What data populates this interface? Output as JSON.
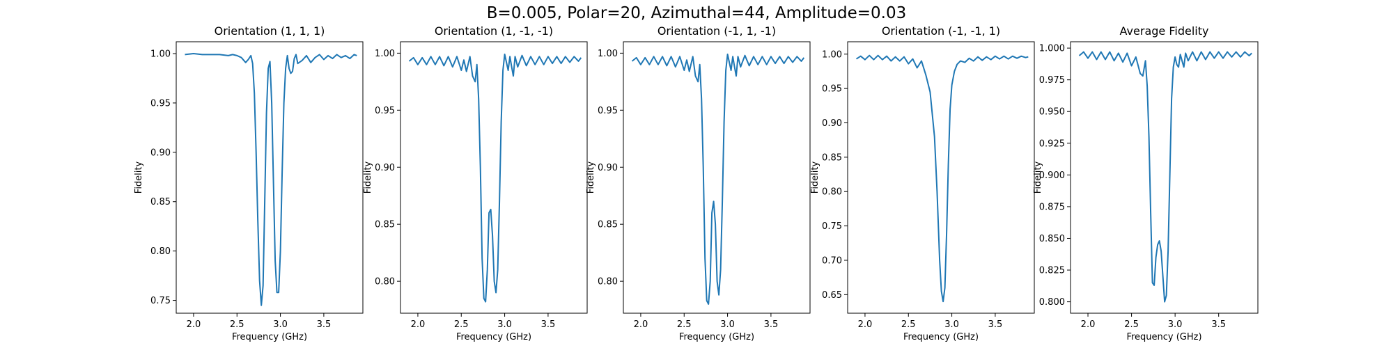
{
  "suptitle": "B=0.005, Polar=20, Azimuthal=44, Amplitude=0.03",
  "line_color": "#1f77b4",
  "chart_data": [
    {
      "type": "line",
      "title": "Orientation (1, 1, 1)",
      "xlabel": "Frequency (GHz)",
      "ylabel": "Fidelity",
      "xlim": [
        1.8,
        3.95
      ],
      "ylim": [
        0.737,
        1.012
      ],
      "xticks": [
        2.0,
        2.5,
        3.0,
        3.5
      ],
      "xtick_labels": [
        "2.0",
        "2.5",
        "3.0",
        "3.5"
      ],
      "yticks": [
        0.75,
        0.8,
        0.85,
        0.9,
        0.95,
        1.0
      ],
      "ytick_labels": [
        "0.75",
        "0.80",
        "0.85",
        "0.90",
        "0.95",
        "1.00"
      ],
      "series": [
        {
          "x": [
            1.9,
            2.0,
            2.1,
            2.2,
            2.3,
            2.4,
            2.45,
            2.5,
            2.55,
            2.6,
            2.63,
            2.66,
            2.68,
            2.7,
            2.72,
            2.74,
            2.76,
            2.78,
            2.8,
            2.82,
            2.84,
            2.86,
            2.88,
            2.9,
            2.92,
            2.94,
            2.96,
            2.98,
            3.0,
            3.02,
            3.04,
            3.06,
            3.08,
            3.1,
            3.12,
            3.14,
            3.16,
            3.18,
            3.2,
            3.25,
            3.3,
            3.35,
            3.4,
            3.45,
            3.5,
            3.55,
            3.6,
            3.65,
            3.7,
            3.75,
            3.8,
            3.85,
            3.88
          ],
          "y": [
            0.999,
            1.0,
            0.999,
            0.999,
            0.999,
            0.998,
            0.999,
            0.998,
            0.996,
            0.991,
            0.994,
            0.998,
            0.99,
            0.96,
            0.9,
            0.83,
            0.77,
            0.745,
            0.765,
            0.85,
            0.94,
            0.985,
            0.992,
            0.95,
            0.87,
            0.79,
            0.758,
            0.758,
            0.8,
            0.88,
            0.95,
            0.985,
            0.998,
            0.985,
            0.98,
            0.982,
            0.995,
            0.999,
            0.99,
            0.993,
            0.998,
            0.991,
            0.996,
            0.999,
            0.994,
            0.998,
            0.995,
            0.999,
            0.996,
            0.998,
            0.995,
            0.999,
            0.998
          ]
        }
      ]
    },
    {
      "type": "line",
      "title": "Orientation (1, -1, -1)",
      "xlabel": "Frequency (GHz)",
      "ylabel": "Fidelity",
      "xlim": [
        1.8,
        3.95
      ],
      "ylim": [
        0.772,
        1.01
      ],
      "xticks": [
        2.0,
        2.5,
        3.0,
        3.5
      ],
      "xtick_labels": [
        "2.0",
        "2.5",
        "3.0",
        "3.5"
      ],
      "yticks": [
        0.8,
        0.85,
        0.9,
        0.95,
        1.0
      ],
      "ytick_labels": [
        "0.80",
        "0.85",
        "0.90",
        "0.95",
        "1.00"
      ],
      "series": [
        {
          "x": [
            1.9,
            1.95,
            2.0,
            2.05,
            2.1,
            2.15,
            2.2,
            2.25,
            2.3,
            2.35,
            2.4,
            2.45,
            2.5,
            2.53,
            2.56,
            2.6,
            2.63,
            2.66,
            2.68,
            2.7,
            2.72,
            2.74,
            2.76,
            2.78,
            2.8,
            2.82,
            2.84,
            2.86,
            2.88,
            2.9,
            2.92,
            2.94,
            2.96,
            2.98,
            3.0,
            3.02,
            3.04,
            3.06,
            3.08,
            3.1,
            3.12,
            3.15,
            3.2,
            3.25,
            3.3,
            3.35,
            3.4,
            3.45,
            3.5,
            3.55,
            3.6,
            3.65,
            3.7,
            3.75,
            3.8,
            3.85,
            3.88
          ],
          "y": [
            0.993,
            0.996,
            0.99,
            0.996,
            0.99,
            0.997,
            0.99,
            0.997,
            0.989,
            0.997,
            0.988,
            0.997,
            0.985,
            0.994,
            0.984,
            0.997,
            0.98,
            0.975,
            0.99,
            0.96,
            0.9,
            0.82,
            0.785,
            0.782,
            0.81,
            0.86,
            0.863,
            0.84,
            0.8,
            0.79,
            0.81,
            0.87,
            0.94,
            0.985,
            0.999,
            0.992,
            0.985,
            0.997,
            0.988,
            0.98,
            0.997,
            0.988,
            0.998,
            0.989,
            0.997,
            0.99,
            0.997,
            0.99,
            0.997,
            0.991,
            0.997,
            0.991,
            0.997,
            0.992,
            0.997,
            0.993,
            0.996
          ]
        }
      ]
    },
    {
      "type": "line",
      "title": "Orientation (-1, 1, -1)",
      "xlabel": "Frequency (GHz)",
      "ylabel": "Fidelity",
      "xlim": [
        1.8,
        3.95
      ],
      "ylim": [
        0.772,
        1.01
      ],
      "xticks": [
        2.0,
        2.5,
        3.0,
        3.5
      ],
      "xtick_labels": [
        "2.0",
        "2.5",
        "3.0",
        "3.5"
      ],
      "yticks": [
        0.8,
        0.85,
        0.9,
        0.95,
        1.0
      ],
      "ytick_labels": [
        "0.80",
        "0.85",
        "0.90",
        "0.95",
        "1.00"
      ],
      "series": [
        {
          "x": [
            1.9,
            1.95,
            2.0,
            2.05,
            2.1,
            2.15,
            2.2,
            2.25,
            2.3,
            2.35,
            2.4,
            2.45,
            2.5,
            2.53,
            2.56,
            2.6,
            2.63,
            2.66,
            2.68,
            2.7,
            2.72,
            2.74,
            2.76,
            2.78,
            2.8,
            2.82,
            2.84,
            2.86,
            2.88,
            2.9,
            2.92,
            2.94,
            2.96,
            2.98,
            3.0,
            3.02,
            3.04,
            3.06,
            3.08,
            3.1,
            3.12,
            3.15,
            3.2,
            3.25,
            3.3,
            3.35,
            3.4,
            3.45,
            3.5,
            3.55,
            3.6,
            3.65,
            3.7,
            3.75,
            3.8,
            3.85,
            3.88
          ],
          "y": [
            0.993,
            0.996,
            0.99,
            0.996,
            0.99,
            0.997,
            0.99,
            0.997,
            0.989,
            0.997,
            0.988,
            0.997,
            0.985,
            0.994,
            0.984,
            0.997,
            0.98,
            0.975,
            0.99,
            0.96,
            0.9,
            0.82,
            0.783,
            0.78,
            0.8,
            0.86,
            0.87,
            0.85,
            0.8,
            0.788,
            0.81,
            0.87,
            0.94,
            0.985,
            0.999,
            0.992,
            0.985,
            0.997,
            0.988,
            0.98,
            0.997,
            0.988,
            0.998,
            0.989,
            0.997,
            0.99,
            0.997,
            0.99,
            0.997,
            0.991,
            0.997,
            0.991,
            0.997,
            0.992,
            0.997,
            0.993,
            0.996
          ]
        }
      ]
    },
    {
      "type": "line",
      "title": "Orientation (-1, -1, 1)",
      "xlabel": "Frequency (GHz)",
      "ylabel": "Fidelity",
      "xlim": [
        1.8,
        3.95
      ],
      "ylim": [
        0.623,
        1.018
      ],
      "xticks": [
        2.0,
        2.5,
        3.0,
        3.5
      ],
      "xtick_labels": [
        "2.0",
        "2.5",
        "3.0",
        "3.5"
      ],
      "yticks": [
        0.65,
        0.7,
        0.75,
        0.8,
        0.85,
        0.9,
        0.95,
        1.0
      ],
      "ytick_labels": [
        "0.65",
        "0.70",
        "0.75",
        "0.80",
        "0.85",
        "0.90",
        "0.95",
        "1.00"
      ],
      "series": [
        {
          "x": [
            1.9,
            1.95,
            2.0,
            2.05,
            2.1,
            2.15,
            2.2,
            2.25,
            2.3,
            2.35,
            2.4,
            2.45,
            2.5,
            2.55,
            2.6,
            2.65,
            2.7,
            2.75,
            2.8,
            2.83,
            2.86,
            2.88,
            2.9,
            2.92,
            2.94,
            2.96,
            2.98,
            3.0,
            3.03,
            3.06,
            3.1,
            3.15,
            3.2,
            3.25,
            3.3,
            3.35,
            3.4,
            3.45,
            3.5,
            3.55,
            3.6,
            3.65,
            3.7,
            3.75,
            3.8,
            3.85,
            3.88
          ],
          "y": [
            0.993,
            0.997,
            0.992,
            0.998,
            0.992,
            0.998,
            0.992,
            0.997,
            0.99,
            0.996,
            0.99,
            0.996,
            0.986,
            0.993,
            0.98,
            0.99,
            0.97,
            0.945,
            0.88,
            0.8,
            0.7,
            0.655,
            0.64,
            0.66,
            0.74,
            0.84,
            0.92,
            0.955,
            0.975,
            0.985,
            0.99,
            0.988,
            0.994,
            0.99,
            0.996,
            0.991,
            0.996,
            0.992,
            0.997,
            0.993,
            0.997,
            0.993,
            0.997,
            0.994,
            0.997,
            0.995,
            0.996
          ]
        }
      ]
    },
    {
      "type": "line",
      "title": "Average Fidelity",
      "xlabel": "Frequency (GHz)",
      "ylabel": "Fidelity",
      "xlim": [
        1.8,
        3.95
      ],
      "ylim": [
        0.791,
        1.005
      ],
      "xticks": [
        2.0,
        2.5,
        3.0,
        3.5
      ],
      "xtick_labels": [
        "2.0",
        "2.5",
        "3.0",
        "3.5"
      ],
      "yticks": [
        0.8,
        0.825,
        0.85,
        0.875,
        0.9,
        0.925,
        0.95,
        0.975,
        1.0
      ],
      "ytick_labels": [
        "0.800",
        "0.825",
        "0.850",
        "0.875",
        "0.900",
        "0.925",
        "0.950",
        "0.975",
        "1.000"
      ],
      "series": [
        {
          "x": [
            1.9,
            1.95,
            2.0,
            2.05,
            2.1,
            2.15,
            2.2,
            2.25,
            2.3,
            2.35,
            2.4,
            2.45,
            2.5,
            2.55,
            2.6,
            2.63,
            2.66,
            2.68,
            2.7,
            2.72,
            2.74,
            2.76,
            2.78,
            2.8,
            2.82,
            2.84,
            2.86,
            2.88,
            2.9,
            2.92,
            2.94,
            2.96,
            2.98,
            3.0,
            3.02,
            3.04,
            3.06,
            3.08,
            3.1,
            3.12,
            3.15,
            3.2,
            3.25,
            3.3,
            3.35,
            3.4,
            3.45,
            3.5,
            3.55,
            3.6,
            3.65,
            3.7,
            3.75,
            3.8,
            3.85,
            3.88
          ],
          "y": [
            0.994,
            0.997,
            0.992,
            0.997,
            0.991,
            0.997,
            0.991,
            0.997,
            0.99,
            0.996,
            0.989,
            0.996,
            0.986,
            0.993,
            0.98,
            0.978,
            0.99,
            0.97,
            0.93,
            0.87,
            0.815,
            0.813,
            0.835,
            0.845,
            0.848,
            0.84,
            0.82,
            0.8,
            0.805,
            0.84,
            0.9,
            0.96,
            0.985,
            0.993,
            0.987,
            0.985,
            0.995,
            0.99,
            0.985,
            0.996,
            0.99,
            0.997,
            0.99,
            0.997,
            0.991,
            0.997,
            0.992,
            0.997,
            0.992,
            0.997,
            0.993,
            0.997,
            0.993,
            0.997,
            0.994,
            0.996
          ]
        }
      ]
    }
  ]
}
